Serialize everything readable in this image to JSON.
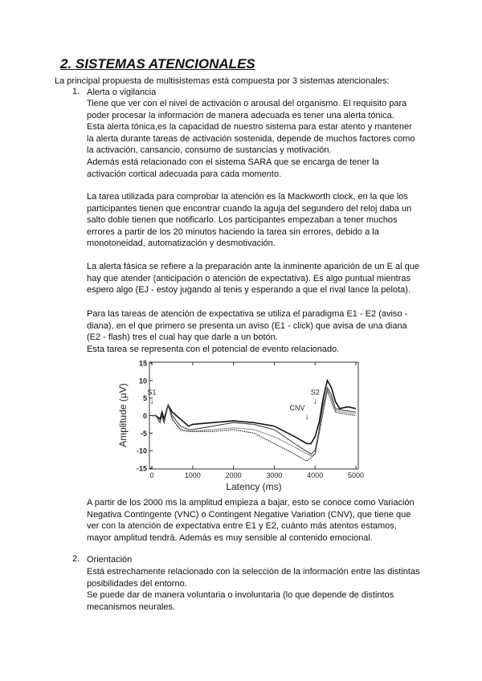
{
  "title": "2. SISTEMAS ATENCIONALES",
  "intro": "La principal propuesta de multisistemas está compuesta por 3 sistemas atencionales:",
  "items": [
    {
      "number": "1.",
      "heading": "Alerta o vigilancia"
    },
    {
      "number": "2.",
      "heading": "Orientación"
    }
  ],
  "paragraphs": {
    "p1": [
      "Tiene que ver con el nivel de activación o arousal del organismo. El requisito para",
      "poder procesar la información de manera adecuada es tener una alerta tónica.",
      "Esta alerta tónica,es la capacidad de nuestro sistema para estar atento y mantener",
      "la alerta durante tareas de activación sostenida, depende de muchos factores como",
      "la activación, cansancio, consumo de sustancias y motivación.",
      "Además está relacionado con el sistema SARA que se encarga de tener la",
      "activación cortical adecuada para cada momento."
    ],
    "p2": [
      "La tarea utilizada para comprobar la atención es la Mackworth clock, en la que los",
      "participantes tienen que encontrar cuando la aguja del segundero del reloj daba un",
      "salto doble tienen que notificarlo. Los participantes empezaban a tener muchos",
      "errores a partir de los 20 minutos haciendo la tarea sin errores, debido a la",
      "monotoneidad, automatización y desmotivación."
    ],
    "p3": [
      "La alerta fásica se refiere a la preparación ante la inminente aparición de un E al que",
      "hay que atender (anticipación o atención de expectativa). Es algo puntual mientras",
      "espero algo (EJ - estoy jugando al tenis y esperando a que el rival lance la pelota)."
    ],
    "p4": [
      "Para las tareas de atención de expectativa se utiliza el paradigma E1 - E2 (aviso -",
      "diana), en el que primero se presenta un aviso (E1 - click) que avisa de una diana",
      "(E2 - flash) tres el cual hay que darle a un botón.",
      "Esta tarea se representa con el potencial de evento relacionado."
    ],
    "p5": [
      "A partir de los 2000 ms la amplitud empieza a bajar, esto se conoce como Variación",
      "Negativa Contingente (VNC) o Contingent Negative Variation (CNV), que tiene que",
      "ver con la atención de expectativa entre E1 y E2, cuánto más atentos estamos,",
      "mayor amplitud tendrá. Además es muy sensible al contenido emocional."
    ],
    "p6": [
      "Está estrechamente relacionado con la selección de la información entre las distintas",
      "posibilidades del entorno.",
      "Se puede dar de manera voluntaria o involuntaria (lo que depende de distintos",
      "mecanismos neurales."
    ]
  },
  "chart_data": {
    "type": "line",
    "xlabel": "Latency (ms)",
    "ylabel": "Amplitude (µV)",
    "xlim": [
      0,
      5000
    ],
    "ylim": [
      -15,
      15
    ],
    "xticks": [
      0,
      1000,
      2000,
      3000,
      4000,
      5000
    ],
    "yticks": [
      15,
      10,
      5,
      0,
      -5,
      -10,
      -15
    ],
    "grid": false,
    "annotations": [
      {
        "text": "S1",
        "x": 0,
        "y": 6
      },
      {
        "text": "CNV",
        "x": 3800,
        "y": 1.5
      },
      {
        "text": "S2",
        "x": 4000,
        "y": 6
      }
    ],
    "series": [
      {
        "color": "#111111",
        "points": [
          [
            0,
            0
          ],
          [
            100,
            0
          ],
          [
            200,
            -1
          ],
          [
            250,
            1
          ],
          [
            300,
            -1
          ],
          [
            400,
            3
          ],
          [
            500,
            1
          ],
          [
            700,
            -1
          ],
          [
            900,
            -3
          ],
          [
            1000,
            -2.5
          ],
          [
            1500,
            -2
          ],
          [
            2000,
            -1.5
          ],
          [
            2500,
            -2
          ],
          [
            3000,
            -3
          ],
          [
            3500,
            -6
          ],
          [
            3800,
            -8
          ],
          [
            3900,
            -8
          ],
          [
            4000,
            -6
          ],
          [
            4100,
            -2
          ],
          [
            4200,
            5
          ],
          [
            4300,
            10
          ],
          [
            4400,
            8
          ],
          [
            4500,
            4
          ],
          [
            4600,
            2
          ],
          [
            4800,
            2.5
          ],
          [
            5000,
            2
          ]
        ]
      },
      {
        "color": "#444444",
        "points": [
          [
            0,
            0
          ],
          [
            100,
            0
          ],
          [
            200,
            -2
          ],
          [
            250,
            0
          ],
          [
            300,
            -2
          ],
          [
            400,
            3
          ],
          [
            500,
            0
          ],
          [
            700,
            -3
          ],
          [
            900,
            -4
          ],
          [
            1000,
            -4
          ],
          [
            1500,
            -3
          ],
          [
            2000,
            -2
          ],
          [
            2500,
            -2.5
          ],
          [
            3000,
            -4
          ],
          [
            3500,
            -8
          ],
          [
            3900,
            -11
          ],
          [
            4000,
            -10
          ],
          [
            4100,
            -4
          ],
          [
            4200,
            3
          ],
          [
            4300,
            8
          ],
          [
            4400,
            6
          ],
          [
            4500,
            2
          ],
          [
            4700,
            1.5
          ],
          [
            5000,
            1
          ]
        ]
      },
      {
        "color": "#999999",
        "points": [
          [
            0,
            0
          ],
          [
            100,
            0
          ],
          [
            200,
            -2
          ],
          [
            250,
            0
          ],
          [
            300,
            -2
          ],
          [
            400,
            3
          ],
          [
            500,
            -1
          ],
          [
            700,
            -4
          ],
          [
            900,
            -4.5
          ],
          [
            1000,
            -4.5
          ],
          [
            1500,
            -4
          ],
          [
            2000,
            -3.5
          ],
          [
            2500,
            -4
          ],
          [
            3000,
            -6
          ],
          [
            3500,
            -9
          ],
          [
            3900,
            -11.5
          ],
          [
            4000,
            -11
          ],
          [
            4100,
            -5
          ],
          [
            4200,
            2
          ],
          [
            4300,
            7.5
          ],
          [
            4400,
            5
          ],
          [
            4500,
            1.5
          ],
          [
            4700,
            1
          ],
          [
            5000,
            0.5
          ]
        ]
      },
      {
        "color": "#222222",
        "dashed": true,
        "points": [
          [
            0,
            0
          ],
          [
            100,
            0
          ],
          [
            200,
            -2
          ],
          [
            250,
            0
          ],
          [
            300,
            -2
          ],
          [
            400,
            3
          ],
          [
            500,
            -1
          ],
          [
            700,
            -4
          ],
          [
            900,
            -4.5
          ],
          [
            1000,
            -4.5
          ],
          [
            1500,
            -4.5
          ],
          [
            2000,
            -4
          ],
          [
            2500,
            -5
          ],
          [
            3000,
            -8
          ],
          [
            3500,
            -11
          ],
          [
            3800,
            -13
          ],
          [
            4000,
            -11
          ],
          [
            4100,
            -5
          ],
          [
            4200,
            1
          ],
          [
            4300,
            7
          ],
          [
            4400,
            4
          ],
          [
            4500,
            1
          ],
          [
            4700,
            0.5
          ],
          [
            5000,
            0
          ]
        ]
      }
    ]
  }
}
